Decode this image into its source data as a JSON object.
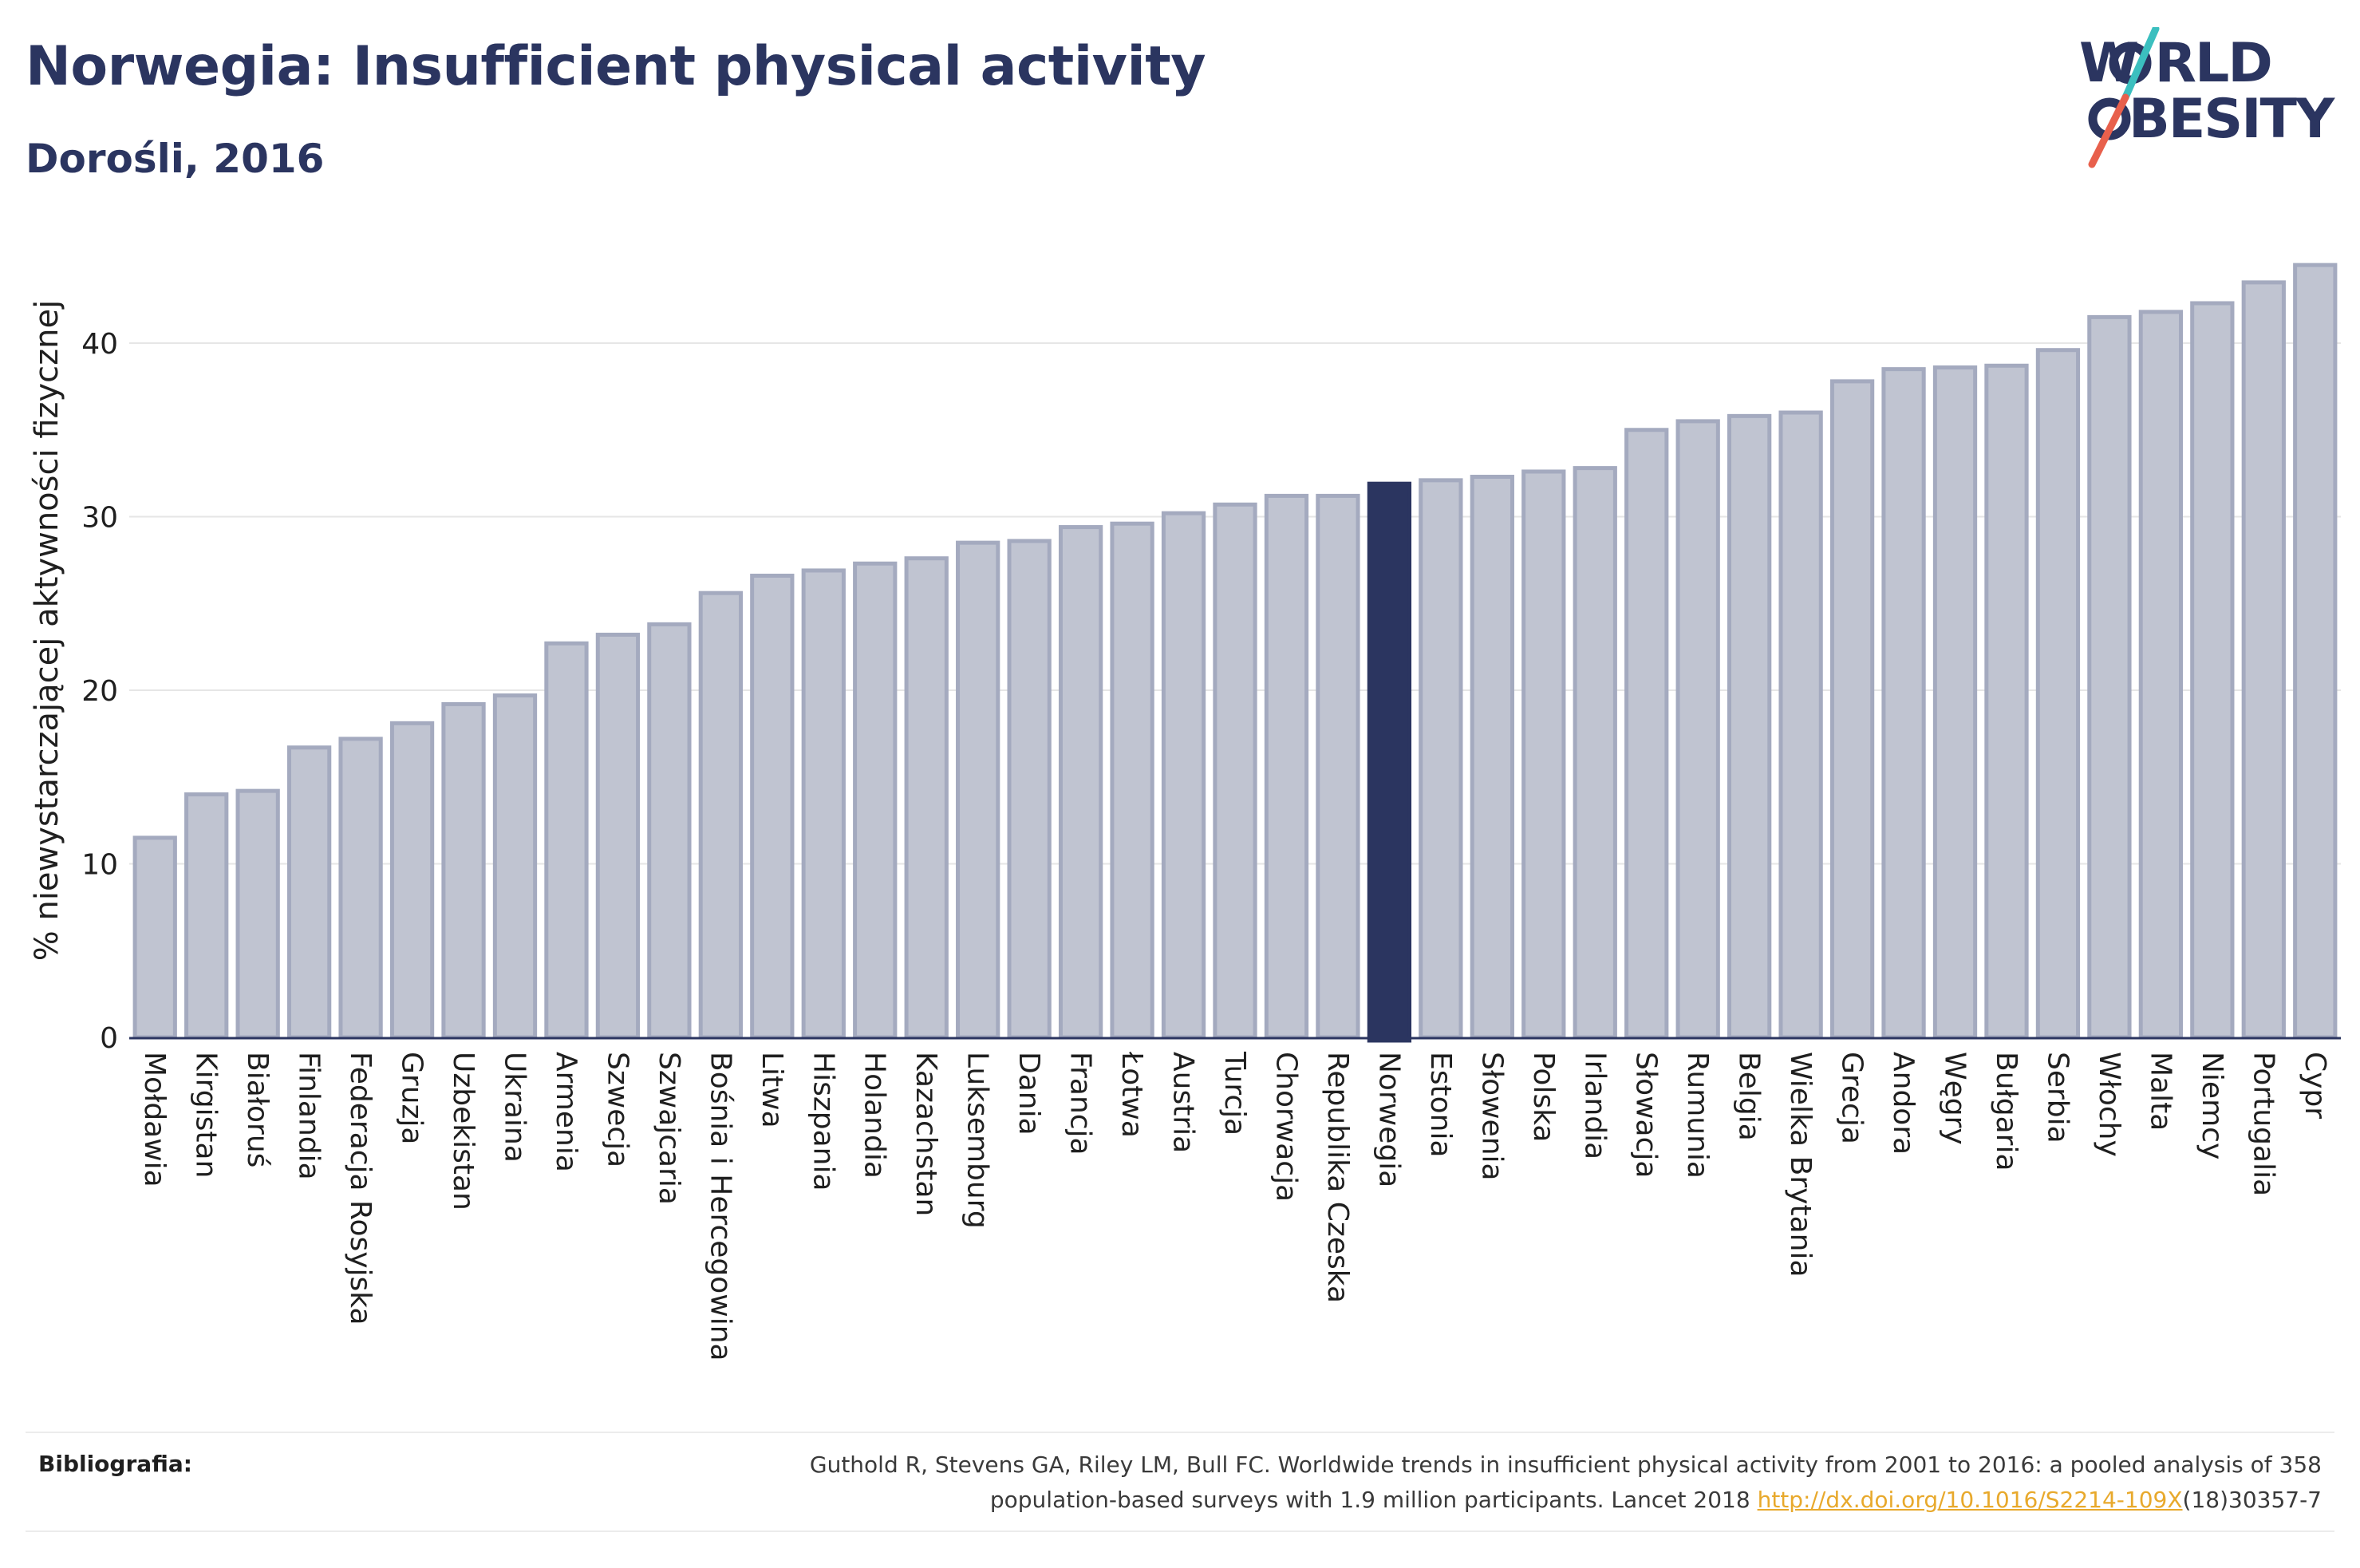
{
  "header": {
    "title": "Norwegia: Insufficient physical activity",
    "subtitle": "Dorośli, 2016"
  },
  "logo": {
    "line1": "W RLD",
    "line2": "BESITY",
    "text": "WORLD OBESITY",
    "colors": {
      "text": "#2b3560",
      "slash_top": "#3bbfbf",
      "slash_bottom": "#e8604c"
    }
  },
  "chart_data": {
    "type": "bar",
    "title": "Norwegia: Insufficient physical activity",
    "subtitle": "Dorośli, 2016",
    "ylabel": "% niewystarczającej aktywności fizycznej",
    "xlabel": "",
    "ylim": [
      0,
      45
    ],
    "yticks": [
      0,
      10,
      20,
      30,
      40
    ],
    "grid": true,
    "highlight": "Norwegia",
    "colors": {
      "bar": "#c0c4d1",
      "bar_edge": "#a4aabf",
      "highlight": "#2b3560"
    },
    "categories": [
      "Mołdawia",
      "Kirgistan",
      "Białoruś",
      "Finlandia",
      "Federacja Rosyjska",
      "Gruzja",
      "Uzbekistan",
      "Ukraina",
      "Armenia",
      "Szwecja",
      "Szwajcaria",
      "Bośnia i Hercegowina",
      "Litwa",
      "Hiszpania",
      "Holandia",
      "Kazachstan",
      "Luksemburg",
      "Dania",
      "Francja",
      "Łotwa",
      "Austria",
      "Turcja",
      "Chorwacja",
      "Republika Czeska",
      "Norwegia",
      "Estonia",
      "Słowenia",
      "Polska",
      "Irlandia",
      "Słowacja",
      "Rumunia",
      "Belgia",
      "Wielka Brytania",
      "Grecja",
      "Andora",
      "Węgry",
      "Bułgaria",
      "Serbia",
      "Włochy",
      "Malta",
      "Niemcy",
      "Portugalia",
      "Cypr"
    ],
    "values": [
      11.5,
      14.0,
      14.2,
      16.7,
      17.2,
      18.1,
      19.2,
      19.7,
      22.7,
      23.2,
      23.8,
      25.6,
      26.6,
      26.9,
      27.3,
      27.6,
      28.5,
      28.6,
      29.4,
      29.6,
      30.2,
      30.7,
      31.2,
      31.2,
      31.9,
      32.1,
      32.3,
      32.6,
      32.8,
      35.0,
      35.5,
      35.8,
      36.0,
      37.8,
      38.5,
      38.6,
      38.7,
      39.6,
      41.5,
      41.8,
      42.3,
      43.5,
      44.5
    ]
  },
  "footer": {
    "bibliography_label": "Bibliografia:",
    "citation_line1": "Guthold R, Stevens GA, Riley LM, Bull FC. Worldwide trends in insufficient physical activity from 2001 to 2016: a pooled analysis of 358",
    "citation_line2_before": "population-based surveys with 1.9 million participants. Lancet 2018 ",
    "citation_link": "http://dx.doi.org/10.1016/S2214-109X",
    "citation_line2_after": "(18)30357-7"
  }
}
